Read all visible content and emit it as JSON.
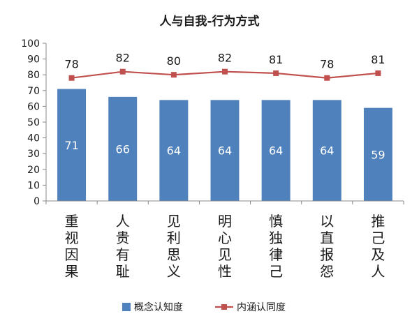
{
  "chart_data": {
    "type": "bar",
    "title": "人与自我-行为方式",
    "categories": [
      "重视因果",
      "人贵有耻",
      "见利思义",
      "明心见性",
      "慎独律己",
      "以直报怨",
      "推己及人"
    ],
    "series": [
      {
        "name": "概念认知度",
        "type": "bar",
        "values": [
          71,
          66,
          64,
          64,
          64,
          64,
          59
        ],
        "color": "#4F81BD"
      },
      {
        "name": "内涵认同度",
        "type": "line",
        "values": [
          78,
          82,
          80,
          82,
          81,
          78,
          81
        ],
        "color": "#C0504D"
      }
    ],
    "ylim": [
      0,
      100
    ],
    "yticks": [
      0,
      10,
      20,
      30,
      40,
      50,
      60,
      70,
      80,
      90,
      100
    ],
    "xlabel": "",
    "ylabel": "",
    "grid": false,
    "legend": "bottom"
  }
}
